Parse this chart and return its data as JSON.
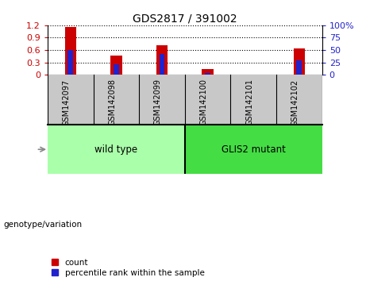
{
  "title": "GDS2817 / 391002",
  "categories": [
    "GSM142097",
    "GSM142098",
    "GSM142099",
    "GSM142100",
    "GSM142101",
    "GSM142102"
  ],
  "count_values": [
    1.15,
    0.46,
    0.72,
    0.14,
    0.0,
    0.64
  ],
  "percentile_values": [
    51,
    22,
    42,
    4,
    0,
    30
  ],
  "left_ylim": [
    0,
    1.2
  ],
  "right_ylim": [
    0,
    100
  ],
  "left_yticks": [
    0,
    0.3,
    0.6,
    0.9,
    1.2
  ],
  "right_yticks": [
    0,
    25,
    50,
    75,
    100
  ],
  "bar_color": "#cc0000",
  "percentile_color": "#2222cc",
  "left_tick_color": "#cc0000",
  "right_tick_color": "#2222cc",
  "wildtype_label": "wild type",
  "mutant_label": "GLIS2 mutant",
  "group_bg_color_wt": "#aaffaa",
  "group_bg_color_mut": "#44dd44",
  "xlabel_bg_color": "#c8c8c8",
  "genotype_label": "genotype/variation",
  "legend_count_label": "count",
  "legend_percentile_label": "percentile rank within the sample",
  "red_bar_width": 0.25,
  "blue_bar_width": 0.12
}
